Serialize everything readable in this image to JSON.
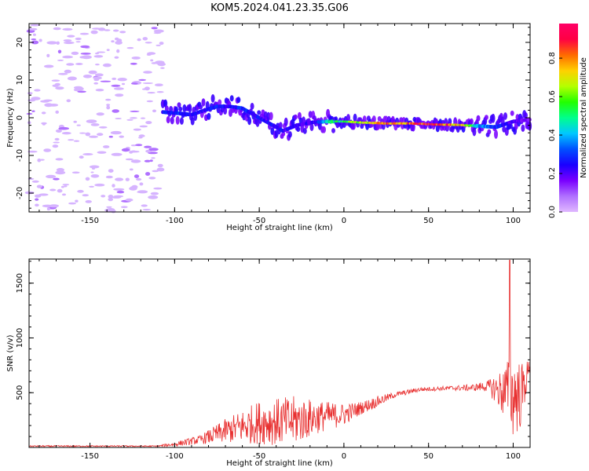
{
  "title": "KOM5.2024.041.23.35.G06",
  "chart_data": [
    {
      "type": "heatmap",
      "xlabel": "Height of straight line (km)",
      "ylabel": "Frequency (Hz)",
      "xlim": [
        -186,
        110
      ],
      "ylim": [
        -25,
        25
      ],
      "x_ticks": [
        -150,
        -100,
        -50,
        0,
        50,
        100
      ],
      "y_ticks": [
        -20,
        -10,
        0,
        10,
        20
      ],
      "colorbar": {
        "label": "Normalized spectral amplitude",
        "range": [
          0,
          0.98
        ],
        "ticks": [
          0.0,
          0.2,
          0.4,
          0.6,
          0.8
        ],
        "colormap": [
          "#e0b8ff",
          "#b070ff",
          "#7a00ff",
          "#1a00ff",
          "#0050ff",
          "#00c8ff",
          "#00ff8c",
          "#22ff00",
          "#b4ff00",
          "#ffd000",
          "#ff6a00",
          "#ff0044",
          "#ff0066"
        ]
      },
      "noise_region": [
        -186,
        -107
      ],
      "ridge": [
        {
          "x": -107,
          "f": 1.5,
          "amp": 0.25
        },
        {
          "x": -98,
          "f": 1.2,
          "amp": 0.3
        },
        {
          "x": -90,
          "f": 0.8,
          "amp": 0.25
        },
        {
          "x": -82,
          "f": 2.0,
          "amp": 0.25
        },
        {
          "x": -75,
          "f": 3.0,
          "amp": 0.28
        },
        {
          "x": -68,
          "f": 3.0,
          "amp": 0.25
        },
        {
          "x": -60,
          "f": 2.5,
          "amp": 0.3
        },
        {
          "x": -52,
          "f": 0.5,
          "amp": 0.25
        },
        {
          "x": -44,
          "f": -1.5,
          "amp": 0.25
        },
        {
          "x": -36,
          "f": -3.5,
          "amp": 0.25
        },
        {
          "x": -28,
          "f": -2.0,
          "amp": 0.22
        },
        {
          "x": -18,
          "f": -1.2,
          "amp": 0.22
        },
        {
          "x": -10,
          "f": -1.0,
          "amp": 0.45
        },
        {
          "x": 0,
          "f": -1.0,
          "amp": 0.55
        },
        {
          "x": 12,
          "f": -1.3,
          "amp": 0.7
        },
        {
          "x": 25,
          "f": -1.5,
          "amp": 0.8
        },
        {
          "x": 40,
          "f": -1.5,
          "amp": 0.85
        },
        {
          "x": 55,
          "f": -1.8,
          "amp": 0.85
        },
        {
          "x": 68,
          "f": -1.9,
          "amp": 0.75
        },
        {
          "x": 80,
          "f": -2.2,
          "amp": 0.4
        },
        {
          "x": 90,
          "f": -2.5,
          "amp": 0.3
        },
        {
          "x": 100,
          "f": -1.0,
          "amp": 0.2
        },
        {
          "x": 110,
          "f": -0.5,
          "amp": 0.15
        }
      ]
    },
    {
      "type": "line",
      "xlabel": "Height of straight line (km)",
      "ylabel": "SNR (v/v)",
      "xlim": [
        -186,
        110
      ],
      "ylim": [
        0,
        1720
      ],
      "x_ticks": [
        -150,
        -100,
        -50,
        0,
        50,
        100
      ],
      "y_ticks": [
        500,
        1000,
        1500
      ],
      "color": "#e83030",
      "envelope": [
        {
          "x": -186,
          "base": 12,
          "spread": 6
        },
        {
          "x": -110,
          "base": 12,
          "spread": 6
        },
        {
          "x": -100,
          "base": 30,
          "spread": 20
        },
        {
          "x": -85,
          "base": 70,
          "spread": 40
        },
        {
          "x": -70,
          "base": 150,
          "spread": 110
        },
        {
          "x": -50,
          "base": 230,
          "spread": 200
        },
        {
          "x": -30,
          "base": 240,
          "spread": 230
        },
        {
          "x": -15,
          "base": 280,
          "spread": 150
        },
        {
          "x": 0,
          "base": 300,
          "spread": 100
        },
        {
          "x": 10,
          "base": 360,
          "spread": 60
        },
        {
          "x": 20,
          "base": 420,
          "spread": 50
        },
        {
          "x": 30,
          "base": 480,
          "spread": 25
        },
        {
          "x": 45,
          "base": 530,
          "spread": 20
        },
        {
          "x": 60,
          "base": 540,
          "spread": 20
        },
        {
          "x": 75,
          "base": 545,
          "spread": 30
        },
        {
          "x": 85,
          "base": 560,
          "spread": 50
        },
        {
          "x": 92,
          "base": 520,
          "spread": 180
        },
        {
          "x": 100,
          "base": 480,
          "spread": 400
        },
        {
          "x": 105,
          "base": 480,
          "spread": 300
        },
        {
          "x": 110,
          "base": 760,
          "spread": 40
        }
      ]
    }
  ]
}
